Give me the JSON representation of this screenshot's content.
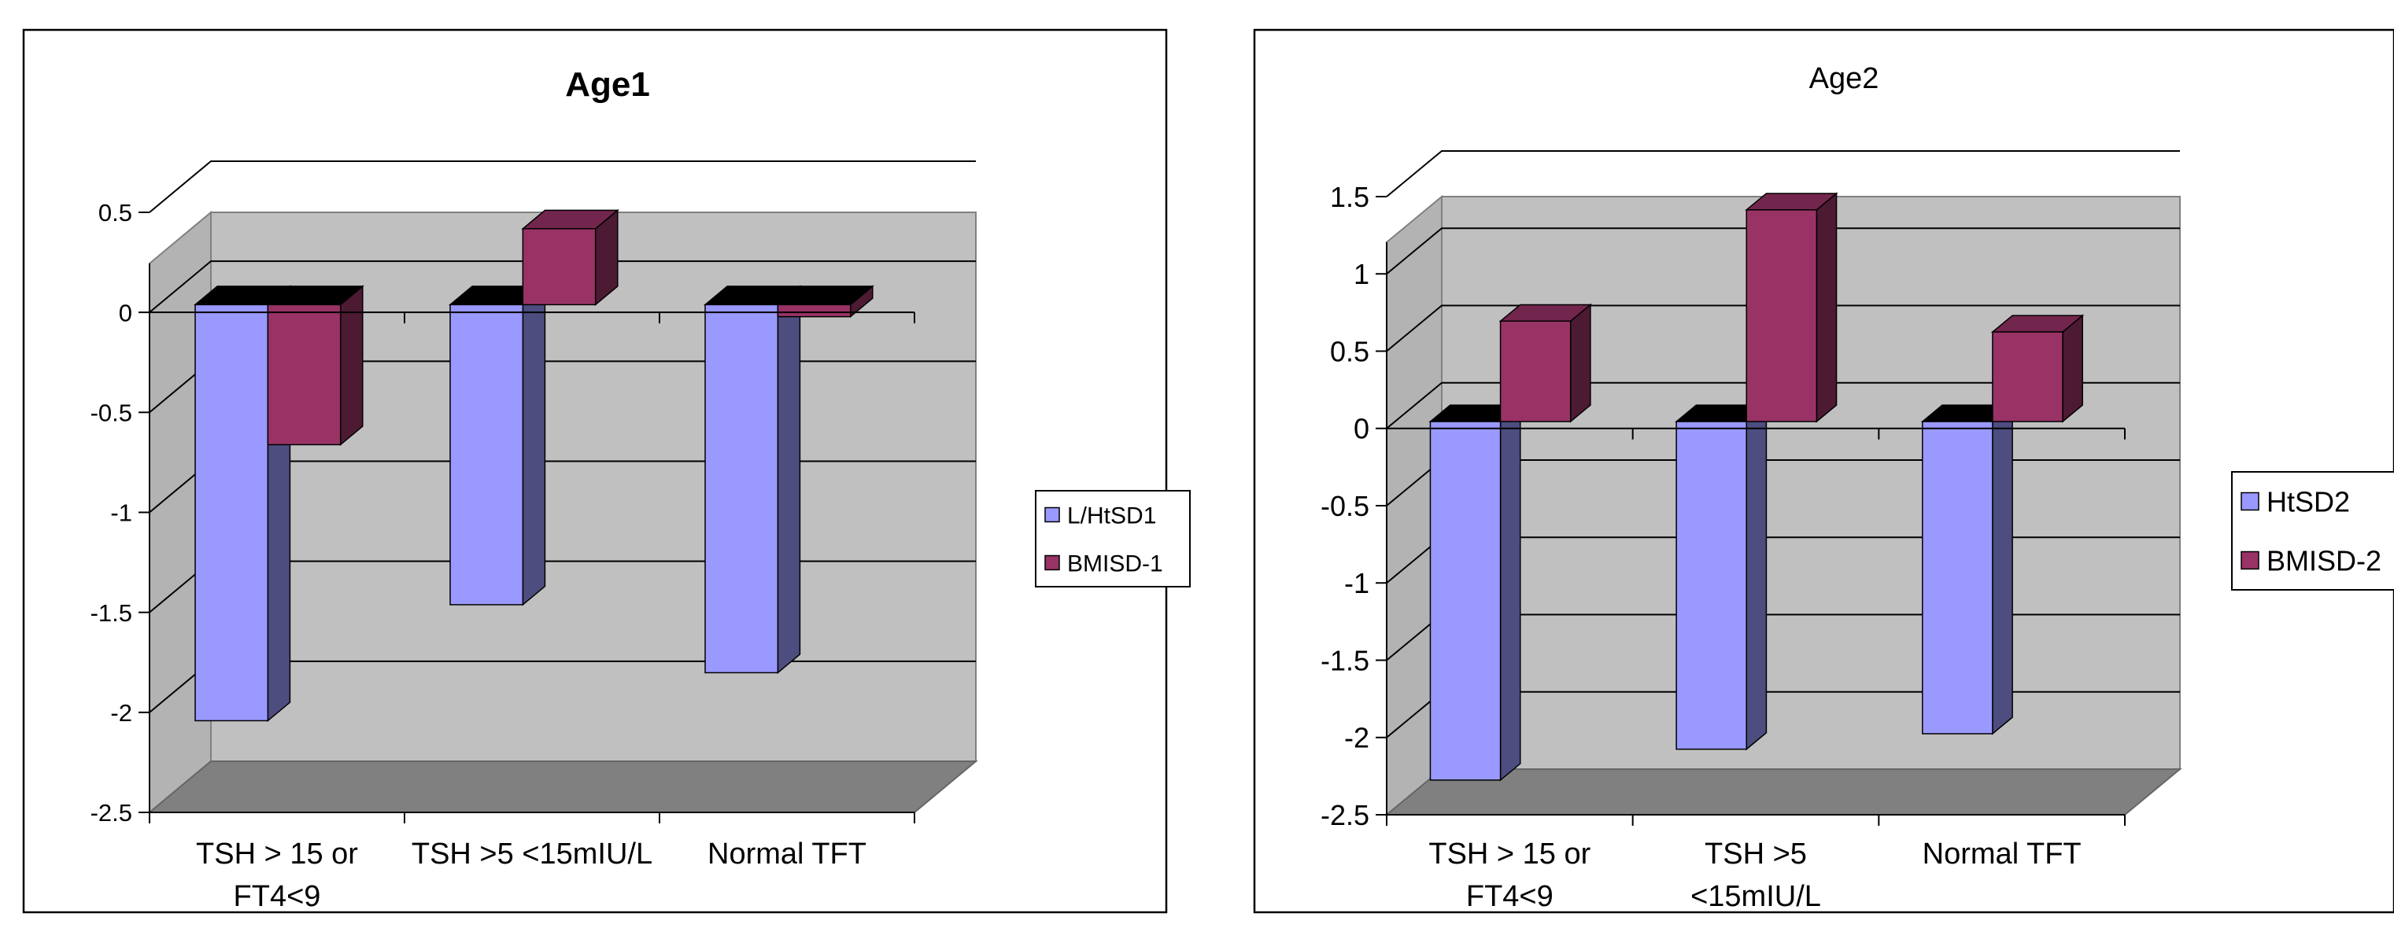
{
  "chart_data": [
    {
      "type": "bar",
      "title": "Age1",
      "title_bold": true,
      "categories": [
        "TSH > 15 or FT4<9",
        "TSH >5 <15mIU/L",
        "Normal TFT"
      ],
      "category_lines": [
        [
          "TSH > 15 or",
          "FT4<9"
        ],
        [
          "TSH >5 <15mIU/L"
        ],
        [
          "Normal TFT"
        ]
      ],
      "series": [
        {
          "name": "L/HtSD1",
          "values": [
            -2.08,
            -1.5,
            -1.84
          ],
          "color": "#9999ff"
        },
        {
          "name": "BMISD-1",
          "values": [
            -0.7,
            0.38,
            -0.06
          ],
          "color": "#993366"
        }
      ],
      "yticks": [
        "0.5",
        "0",
        "-0.5",
        "-1",
        "-1.5",
        "-2",
        "-2.5"
      ],
      "ylim": [
        -2.5,
        0.5
      ],
      "grid": true,
      "legend": "right",
      "three_d": true
    },
    {
      "type": "bar",
      "title": "Age2",
      "title_bold": false,
      "categories": [
        "TSH > 15 or FT4<9",
        "TSH >5 <15mIU/L",
        "Normal TFT"
      ],
      "category_lines": [
        [
          "TSH > 15 or",
          "FT4<9"
        ],
        [
          "TSH >5",
          "<15mIU/L"
        ],
        [
          "Normal TFT"
        ]
      ],
      "series": [
        {
          "name": "HtSD2",
          "values": [
            -2.32,
            -2.12,
            -2.02
          ],
          "color": "#9999ff"
        },
        {
          "name": "BMISD-2",
          "values": [
            0.65,
            1.37,
            0.58
          ],
          "color": "#993366"
        }
      ],
      "yticks": [
        "1.5",
        "1",
        "0.5",
        "0",
        "-0.5",
        "-1",
        "-1.5",
        "-2",
        "-2.5"
      ],
      "ylim": [
        -2.5,
        1.5
      ],
      "grid": true,
      "legend": "right",
      "three_d": true
    }
  ]
}
